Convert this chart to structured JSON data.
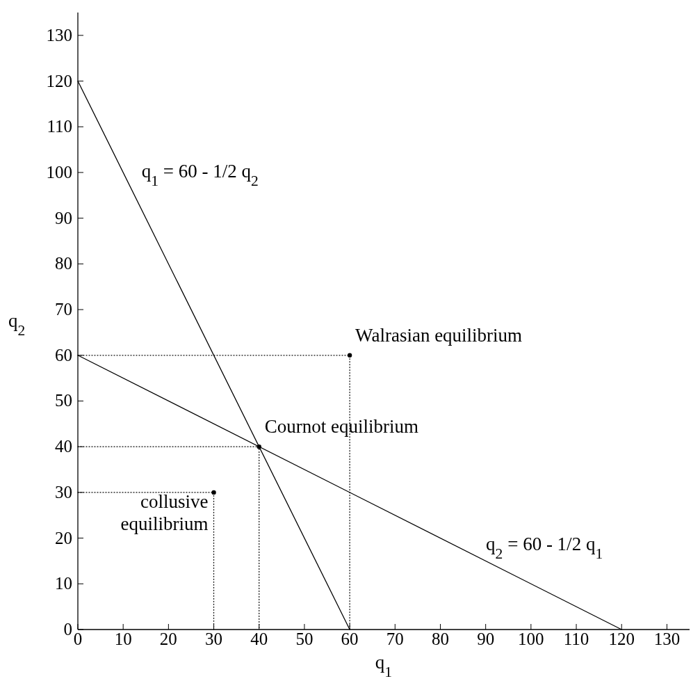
{
  "chart_data": {
    "type": "line",
    "xlabel": "q$_{1}$",
    "ylabel": "q$_{2}$",
    "xlim": [
      0,
      135
    ],
    "ylim": [
      0,
      135
    ],
    "xticks": [
      0,
      10,
      20,
      30,
      40,
      50,
      60,
      70,
      80,
      90,
      100,
      110,
      120,
      130
    ],
    "yticks": [
      0,
      10,
      20,
      30,
      40,
      50,
      60,
      70,
      80,
      90,
      100,
      110,
      120,
      130
    ],
    "grid": false,
    "series": [
      {
        "color": "#000000",
        "x": [
          0,
          60
        ],
        "values": [
          120,
          0
        ],
        "line_style": "solid",
        "marker": "none"
      },
      {
        "color": "#000000",
        "x": [
          0,
          120
        ],
        "values": [
          60,
          0
        ],
        "line_style": "solid",
        "marker": "none"
      },
      {
        "color": "#000000",
        "x": [
          0,
          30,
          30
        ],
        "values": [
          30,
          30,
          0
        ],
        "line_style": "dotted",
        "marker": "none"
      },
      {
        "color": "#000000",
        "x": [
          0,
          40,
          40
        ],
        "values": [
          40,
          40,
          0
        ],
        "line_style": "dotted",
        "marker": "none"
      },
      {
        "color": "#000000",
        "x": [
          0,
          60,
          60
        ],
        "values": [
          60,
          60,
          0
        ],
        "line_style": "dotted",
        "marker": "none"
      },
      {
        "type": "scatter",
        "color": "#000000",
        "x": [
          30,
          40,
          60
        ],
        "values": [
          30,
          40,
          60
        ],
        "marker": "circle"
      }
    ],
    "annotations": [
      {
        "text": "q$_{1}$ = 60 - 1/2 q$_{2}$",
        "x": 11,
        "y": 98
      },
      {
        "text": "q$_{2}$ = 60 - 1/2 q$_{1}$",
        "x": 87,
        "y": 16.5
      },
      {
        "text": "Walrasian equilibrium",
        "x": 60,
        "y": 60
      },
      {
        "text": "Cournot equilibrium",
        "x": 40,
        "y": 40
      },
      {
        "text": "collusive equilibrium",
        "x": 30,
        "y": 30
      }
    ]
  }
}
